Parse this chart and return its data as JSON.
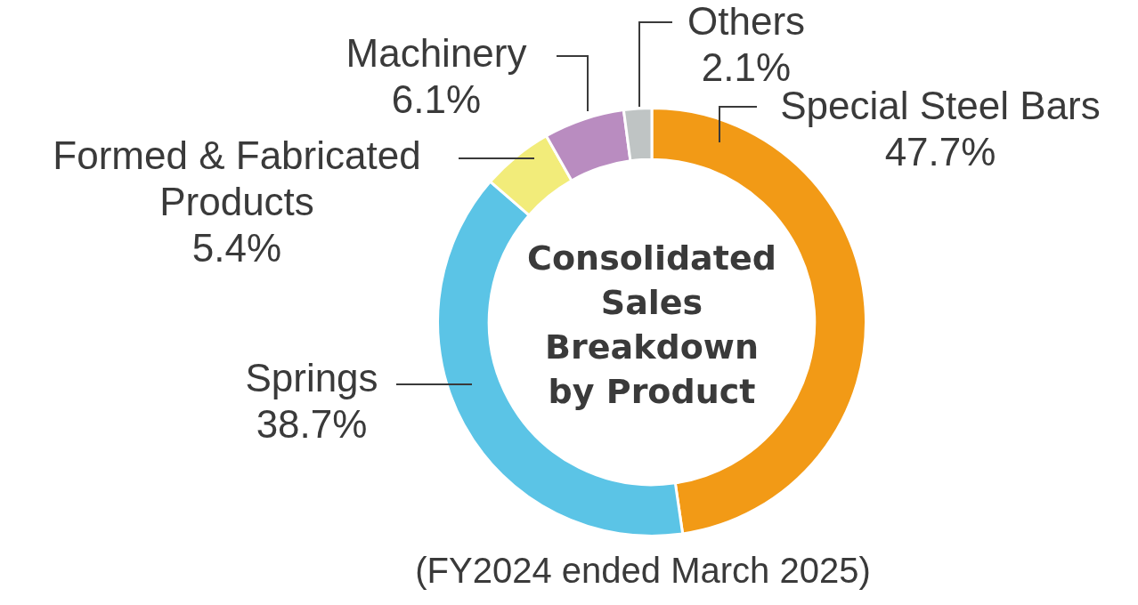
{
  "chart_data": {
    "type": "donut",
    "title": "Consolidated Sales Breakdown by Product",
    "categories": [
      "Special Steel Bars",
      "Springs",
      "Formed & Fabricated Products",
      "Machinery",
      "Others"
    ],
    "values": [
      47.7,
      38.7,
      5.4,
      6.1,
      2.1
    ],
    "value_labels": [
      "47.7%",
      "38.7%",
      "5.4%",
      "6.1%",
      "2.1%"
    ],
    "colors": [
      "#f29a16",
      "#5bc4e6",
      "#f2ec7a",
      "#b98cc0",
      "#bfc4c4"
    ],
    "annotations": [
      "(FY2024 ended March 2025)"
    ],
    "legend": false
  }
}
